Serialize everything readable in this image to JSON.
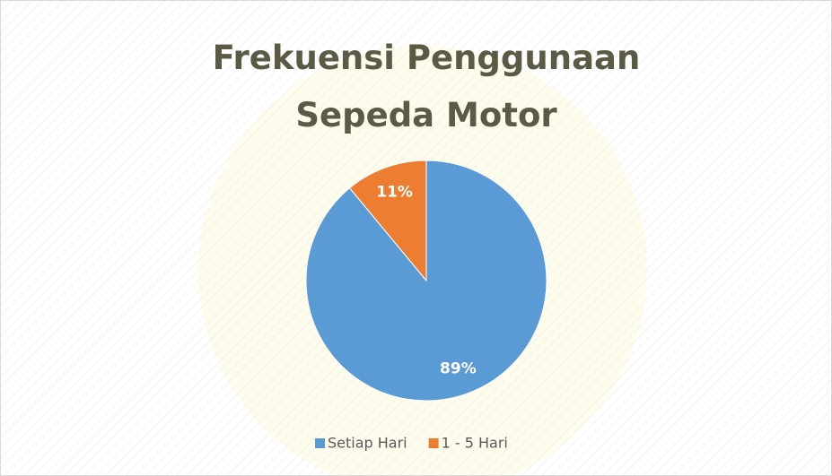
{
  "chart_data": {
    "type": "pie",
    "title": "Frekuensi Penggunaan Sepeda Motor",
    "categories": [
      "Setiap Hari",
      "1 - 5 Hari"
    ],
    "values": [
      89,
      11
    ],
    "value_labels": [
      "89%",
      "11%"
    ],
    "colors": [
      "#5b9bd5",
      "#ed7d31"
    ],
    "legend": "bottom"
  }
}
